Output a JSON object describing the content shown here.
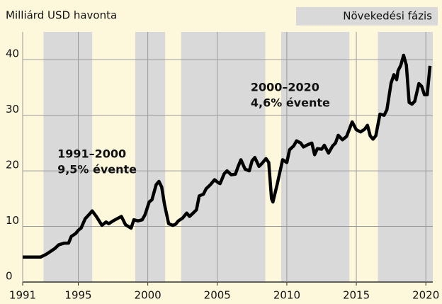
{
  "chart_data": {
    "type": "line",
    "y_label": "Milliárd USD havonta",
    "xlim": [
      1991,
      2020.5
    ],
    "ylim": [
      0,
      45
    ],
    "xticks": [
      1991,
      1995,
      2000,
      2005,
      2010,
      2015,
      2020
    ],
    "yticks": [
      0,
      10,
      20,
      30,
      40
    ],
    "grid": true,
    "phases": {
      "name": "Növekedési fázis",
      "color": "#d9d9d9",
      "ranges": [
        [
          1992.5,
          1996.0
        ],
        [
          1999.1,
          2001.25
        ],
        [
          2002.4,
          2008.45
        ],
        [
          2009.6,
          2014.5
        ],
        [
          2016.55,
          2020.5
        ]
      ]
    },
    "annotations": [
      {
        "lines": [
          "1991–2000",
          "9,5% évente"
        ],
        "x": 1993.5,
        "y": 23
      },
      {
        "lines": [
          "2000–2020",
          "4,6% évente"
        ],
        "x": 2007.4,
        "y": 35
      }
    ],
    "series": [
      {
        "color": "#000000",
        "x": [
          1991,
          1992,
          1992.3,
          1992.7,
          1993,
          1993.3,
          1993.6,
          1994,
          1994.3,
          1994.5,
          1994.8,
          1995,
          1995.2,
          1995.5,
          1995.8,
          1996,
          1996.3,
          1996.7,
          1997,
          1997.2,
          1997.5,
          1997.8,
          1998.1,
          1998.4,
          1998.8,
          1999,
          1999.3,
          1999.6,
          1999.8,
          2000.1,
          2000.3,
          2000.6,
          2000.8,
          2001,
          2001.2,
          2001.5,
          2001.8,
          2002,
          2002.2,
          2002.5,
          2002.8,
          2003,
          2003.3,
          2003.5,
          2003.7,
          2004,
          2004.2,
          2004.5,
          2004.8,
          2005,
          2005.2,
          2005.5,
          2005.7,
          2006,
          2006.3,
          2006.5,
          2006.7,
          2007,
          2007.3,
          2007.5,
          2007.7,
          2008,
          2008.2,
          2008.5,
          2008.7,
          2008.9,
          2009,
          2009.3,
          2009.7,
          2010,
          2010.2,
          2010.5,
          2010.7,
          2011,
          2011.2,
          2011.5,
          2011.8,
          2012,
          2012.2,
          2012.5,
          2012.7,
          2013,
          2013.3,
          2013.5,
          2013.7,
          2014,
          2014.3,
          2014.5,
          2014.7,
          2015,
          2015.3,
          2015.6,
          2015.8,
          2016,
          2016.2,
          2016.4,
          2016.7,
          2017,
          2017.2,
          2017.5,
          2017.7,
          2017.9,
          2018,
          2018.2,
          2018.4,
          2018.6,
          2018.8,
          2019,
          2019.2,
          2019.5,
          2019.7,
          2019.9,
          2020.1,
          2020.3
        ],
        "values": [
          4.5,
          4.5,
          4.5,
          5,
          5.5,
          6,
          6.7,
          7,
          7,
          8.2,
          8.7,
          9.3,
          9.7,
          11.4,
          12.2,
          12.8,
          11.8,
          10.2,
          10.8,
          10.5,
          11,
          11.4,
          11.8,
          10.3,
          9.7,
          11.2,
          11,
          11.2,
          12.1,
          14.4,
          14.8,
          17.5,
          18.1,
          17.1,
          14,
          10.5,
          10.2,
          10.4,
          11,
          11.5,
          12.4,
          11.8,
          12.5,
          13,
          15.5,
          15.8,
          16.8,
          17.5,
          18.4,
          18,
          17.7,
          19.5,
          20,
          19.3,
          19.4,
          20.8,
          22,
          20.3,
          20,
          21.8,
          22.4,
          20.8,
          21.3,
          22.2,
          21.5,
          15,
          14.4,
          17.5,
          22,
          21.5,
          23.8,
          24.5,
          25.4,
          25,
          24.3,
          24.7,
          25,
          22.9,
          24,
          23.9,
          24.6,
          23.2,
          24.5,
          25,
          26.4,
          25.6,
          26.2,
          27.5,
          28.8,
          27.4,
          27,
          27.5,
          28.2,
          26.3,
          25.7,
          26.3,
          30.2,
          30,
          31,
          35.8,
          37.3,
          36.4,
          38,
          39,
          40.8,
          39,
          32.3,
          32,
          32.5,
          35.7,
          35.2,
          33.7,
          33.7,
          38.9
        ]
      }
    ]
  }
}
